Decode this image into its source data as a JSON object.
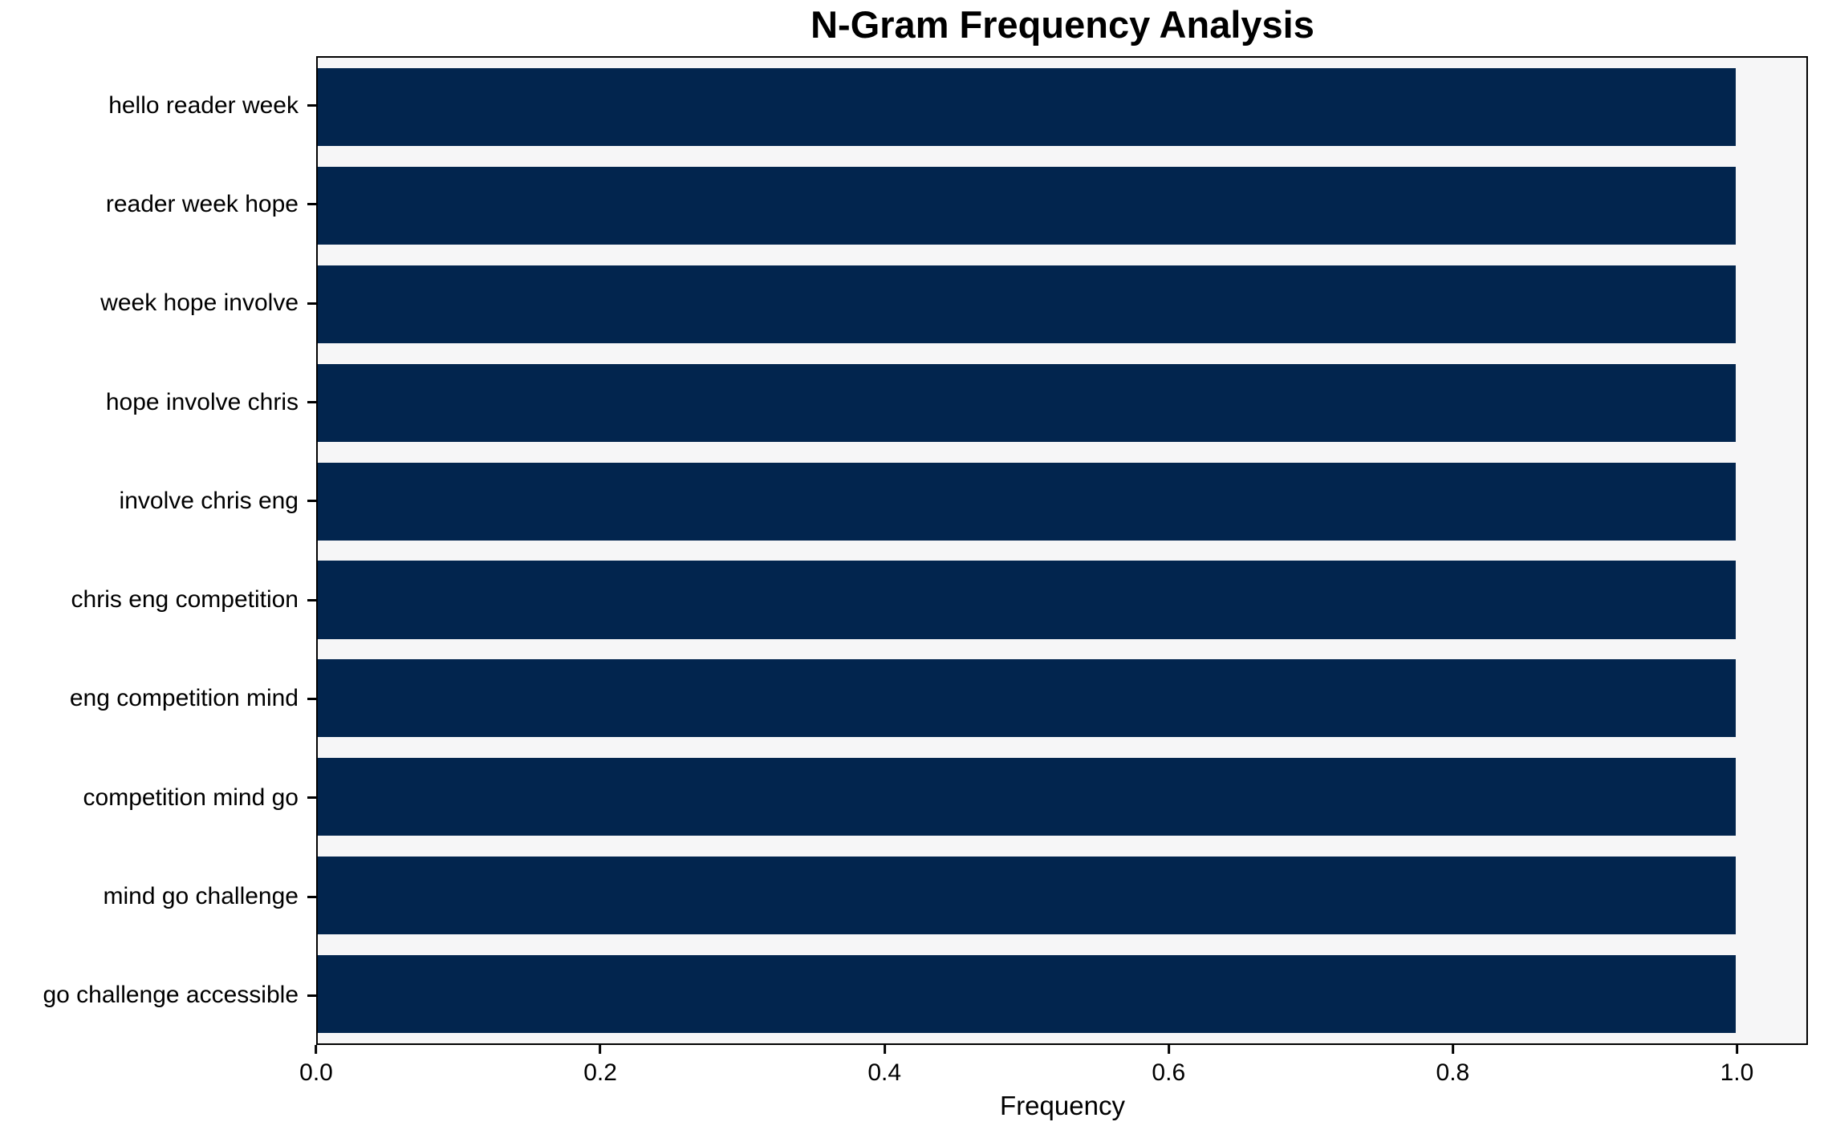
{
  "chart_data": {
    "type": "bar",
    "orientation": "horizontal",
    "title": "N-Gram Frequency Analysis",
    "xlabel": "Frequency",
    "ylabel": "",
    "categories": [
      "hello reader week",
      "reader week hope",
      "week hope involve",
      "hope involve chris",
      "involve chris eng",
      "chris eng competition",
      "eng competition mind",
      "competition mind go",
      "mind go challenge",
      "go challenge accessible"
    ],
    "values": [
      1.0,
      1.0,
      1.0,
      1.0,
      1.0,
      1.0,
      1.0,
      1.0,
      1.0,
      1.0
    ],
    "x_ticks": [
      0.0,
      0.2,
      0.4,
      0.6,
      0.8,
      1.0
    ],
    "x_tick_labels": [
      "0.0",
      "0.2",
      "0.4",
      "0.6",
      "0.8",
      "1.0"
    ],
    "xlim": [
      0,
      1.05
    ],
    "grid": false,
    "legend_position": "none",
    "bar_color": "#02254e",
    "plot_background": "#f6f6f7",
    "figure_background": "#ffffff",
    "spine_color": "#000000",
    "text_color": "#000000"
  }
}
